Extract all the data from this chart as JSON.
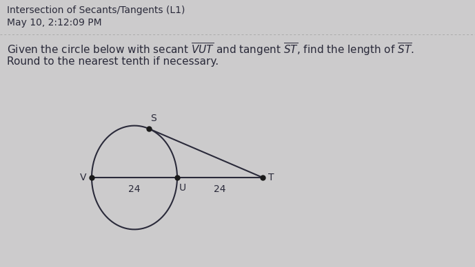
{
  "title_line1": "Intersection of Secants/Tangents (L1)",
  "title_line2": "May 10, 2:12:09 PM",
  "problem_line1": "Given the circle below with secant $\\overline{VUT}$ and tangent $\\overline{ST}$, find the length of $\\overline{ST}$.",
  "problem_line2": "Round to the nearest tenth if necessary.",
  "bg_color": "#cccbcc",
  "text_color": "#2a2a3a",
  "circle_color": "#2a2a3a",
  "line_color": "#2a2a3a",
  "dot_color": "#1a1a1a",
  "label_V": "V",
  "label_U": "U",
  "label_S": "S",
  "label_T": "T",
  "label_VU": "24",
  "label_UT": "24",
  "font_size_title": 10,
  "font_size_text": 11,
  "font_size_labels": 10,
  "separator_color": "#aaaaaa"
}
